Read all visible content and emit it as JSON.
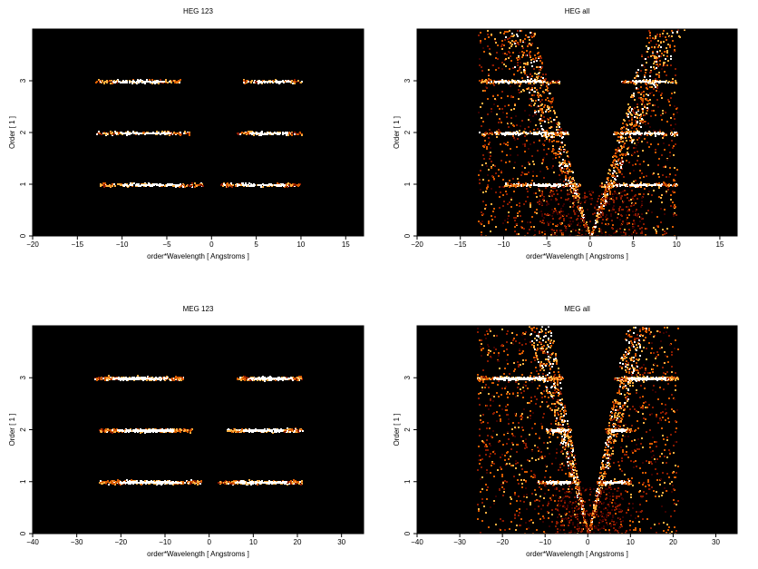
{
  "chart_data": [
    {
      "type": "heatmap",
      "title": "HEG 123",
      "xlabel": "order*Wavelength [ Angstroms ]",
      "ylabel": "Order [ 1 ]",
      "xlim": [
        -20,
        17
      ],
      "ylim": [
        0,
        4
      ],
      "xticks": [
        -20,
        -15,
        -10,
        -5,
        0,
        5,
        10,
        15
      ],
      "yticks": [
        0,
        1,
        2,
        3
      ],
      "grid": false,
      "background_color": "#000000",
      "colormap": [
        "#3a0000",
        "#8a1a00",
        "#d85a00",
        "#ffb040",
        "#ffffff"
      ],
      "bands": [
        {
          "order": 1,
          "x_ranges": [
            [
              -12.5,
              -1
            ],
            [
              1,
              10
            ]
          ]
        },
        {
          "order": 2,
          "x_ranges": [
            [
              -13,
              -2.5
            ],
            [
              2.5,
              10
            ]
          ]
        },
        {
          "order": 3,
          "x_ranges": [
            [
              -13,
              -3.5
            ],
            [
              3.5,
              10
            ]
          ]
        }
      ]
    },
    {
      "type": "heatmap",
      "title": "HEG all",
      "xlabel": "order*Wavelength [ Angstroms ]",
      "ylabel": "Order [ 1 ]",
      "xlim": [
        -20,
        17
      ],
      "ylim": [
        0,
        4
      ],
      "xticks": [
        -20,
        -15,
        -10,
        -5,
        0,
        5,
        10,
        15
      ],
      "yticks": [
        0,
        1,
        2,
        3
      ],
      "grid": false,
      "background_color": "#000000",
      "colormap": [
        "#3a0000",
        "#8a1a00",
        "#d85a00",
        "#ffb040",
        "#ffffff"
      ],
      "bands": [
        {
          "order": 1,
          "x_ranges": [
            [
              -10,
              -1
            ],
            [
              1,
              10
            ]
          ]
        },
        {
          "order": 2,
          "x_ranges": [
            [
              -13,
              -2.5
            ],
            [
              2.5,
              10
            ]
          ]
        },
        {
          "order": 3,
          "x_ranges": [
            [
              -13,
              -3.5
            ],
            [
              3.5,
              10
            ]
          ]
        }
      ],
      "scatter_region": {
        "x_range": [
          -13,
          10
        ]
      },
      "wedge": {
        "apex_x": 0,
        "slope_per_order": 3
      }
    },
    {
      "type": "heatmap",
      "title": "MEG 123",
      "xlabel": "order*Wavelength [ Angstroms ]",
      "ylabel": "Order [ 1 ]",
      "xlim": [
        -40,
        35
      ],
      "ylim": [
        0,
        4
      ],
      "xticks": [
        -40,
        -30,
        -20,
        -10,
        0,
        10,
        20,
        30
      ],
      "yticks": [
        0,
        1,
        2,
        3
      ],
      "grid": false,
      "background_color": "#000000",
      "colormap": [
        "#3a0000",
        "#8a1a00",
        "#d85a00",
        "#ffb040",
        "#ffffff"
      ],
      "bands": [
        {
          "order": 1,
          "x_ranges": [
            [
              -25,
              -2
            ],
            [
              2,
              21
            ]
          ]
        },
        {
          "order": 2,
          "x_ranges": [
            [
              -25,
              -4
            ],
            [
              4,
              21
            ]
          ]
        },
        {
          "order": 3,
          "x_ranges": [
            [
              -26,
              -6
            ],
            [
              6,
              21
            ]
          ]
        }
      ]
    },
    {
      "type": "heatmap",
      "title": "MEG all",
      "xlabel": "order*Wavelength [ Angstroms ]",
      "ylabel": "Order [ 1 ]",
      "xlim": [
        -40,
        35
      ],
      "ylim": [
        0,
        4
      ],
      "xticks": [
        -40,
        -30,
        -20,
        -10,
        0,
        10,
        20,
        30
      ],
      "yticks": [
        0,
        1,
        2,
        3
      ],
      "grid": false,
      "background_color": "#000000",
      "colormap": [
        "#3a0000",
        "#8a1a00",
        "#d85a00",
        "#ffb040",
        "#ffffff"
      ],
      "bands": [
        {
          "order": 1,
          "x_ranges": [
            [
              -12,
              -2
            ],
            [
              2,
              10
            ]
          ]
        },
        {
          "order": 2,
          "x_ranges": [
            [
              -10,
              -4
            ],
            [
              4,
              10
            ]
          ]
        },
        {
          "order": 3,
          "x_ranges": [
            [
              -26,
              -6
            ],
            [
              6,
              21
            ]
          ]
        }
      ],
      "scatter_region": {
        "x_range": [
          -26,
          21
        ]
      },
      "wedge": {
        "apex_x": 0,
        "slope_per_order": 4
      }
    }
  ]
}
